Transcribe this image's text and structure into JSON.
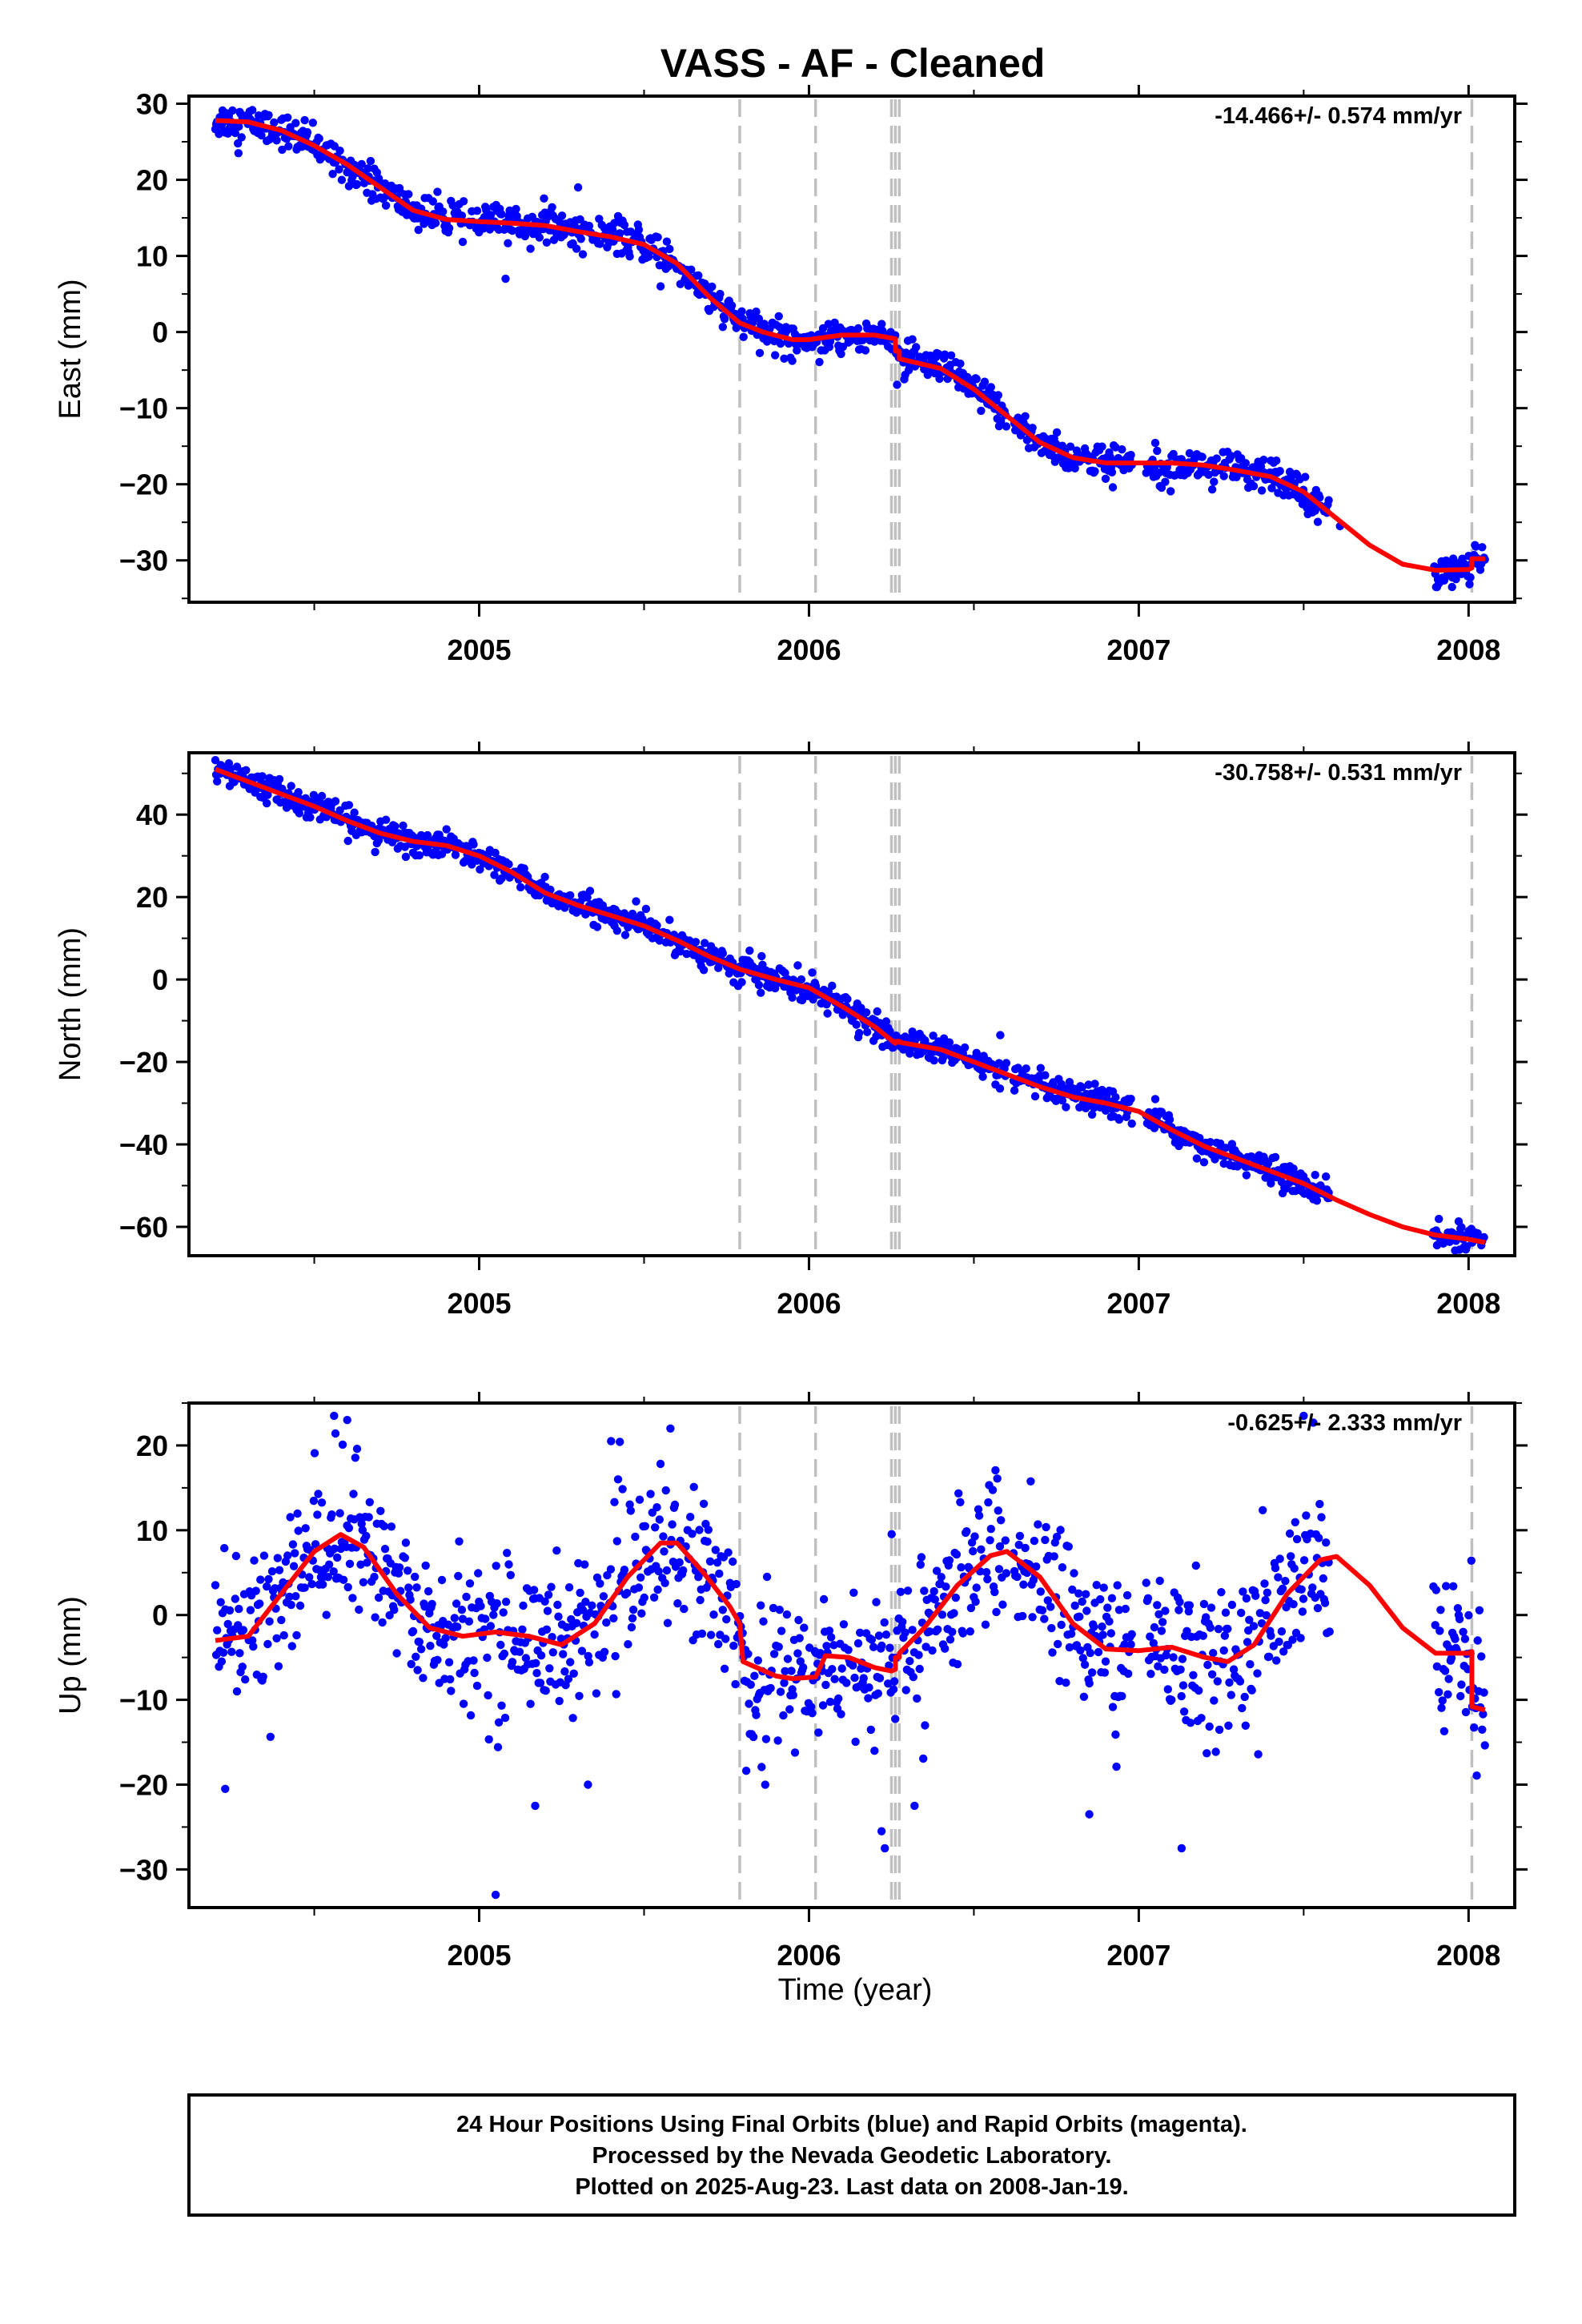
{
  "chart_data": {
    "type": "scatter",
    "title": "VASS  - AF - Cleaned",
    "xlabel": "Time (year)",
    "xlim": [
      2004.12,
      2008.14
    ],
    "x_ticks": [
      2005,
      2006,
      2007,
      2008
    ],
    "x_tick_labels": [
      "2005",
      "2006",
      "2007",
      "2008"
    ],
    "minor_x_ticks": [
      2004.5,
      2005.5,
      2006.5,
      2007.5
    ],
    "grid": false,
    "event_lines": [
      2005.79,
      2006.02,
      2006.25,
      2006.262,
      2006.274,
      2008.01
    ],
    "panels": [
      {
        "id": "east",
        "ylabel": "East (mm)",
        "ylim": [
          -35.5,
          31
        ],
        "y_ticks": [
          30,
          20,
          10,
          0,
          -10,
          -20,
          -30
        ],
        "y_tick_labels": [
          "30",
          "20",
          "10",
          "0",
          "−10",
          "−20",
          "−30"
        ],
        "rate_text": "-14.466+/- 0.574 mm/yr",
        "gaps": [
          [
            2006.6,
            2006.62
          ],
          [
            2006.98,
            2007.02
          ],
          [
            2007.58,
            2007.89
          ]
        ],
        "fit": [
          [
            2004.2,
            27.8
          ],
          [
            2004.3,
            27.6
          ],
          [
            2004.4,
            26.5
          ],
          [
            2004.5,
            24.5
          ],
          [
            2004.6,
            22
          ],
          [
            2004.7,
            19
          ],
          [
            2004.8,
            16
          ],
          [
            2004.9,
            14.8
          ],
          [
            2005.0,
            14.5
          ],
          [
            2005.1,
            14.3
          ],
          [
            2005.2,
            14
          ],
          [
            2005.3,
            13.2
          ],
          [
            2005.4,
            12.5
          ],
          [
            2005.5,
            11.5
          ],
          [
            2005.6,
            9
          ],
          [
            2005.7,
            4.5
          ],
          [
            2005.79,
            1.2
          ],
          [
            2005.86,
            0
          ],
          [
            2005.95,
            -1
          ],
          [
            2006.0,
            -1
          ],
          [
            2006.1,
            -0.4
          ],
          [
            2006.2,
            -0.4
          ],
          [
            2006.25,
            -0.8
          ],
          [
            2006.262,
            -0.9
          ],
          [
            2006.262,
            -2.5
          ],
          [
            2006.274,
            -2.5
          ],
          [
            2006.274,
            -3.5
          ],
          [
            2006.4,
            -4.8
          ],
          [
            2006.5,
            -7.5
          ],
          [
            2006.6,
            -11
          ],
          [
            2006.7,
            -14.5
          ],
          [
            2006.8,
            -16.5
          ],
          [
            2006.9,
            -17.2
          ],
          [
            2007.0,
            -17.2
          ],
          [
            2007.1,
            -17.2
          ],
          [
            2007.2,
            -17.5
          ],
          [
            2007.3,
            -18.2
          ],
          [
            2007.4,
            -19
          ],
          [
            2007.5,
            -21
          ],
          [
            2007.6,
            -24.5
          ],
          [
            2007.7,
            -28
          ],
          [
            2007.8,
            -30.5
          ],
          [
            2007.9,
            -31.3
          ],
          [
            2008.0,
            -31.2
          ],
          [
            2008.01,
            -31
          ],
          [
            2008.01,
            -29.8
          ],
          [
            2008.05,
            -29.8
          ]
        ],
        "spread": 1.1,
        "outliers": [
          [
            2004.27,
            23.5
          ],
          [
            2005.08,
            7
          ],
          [
            2007.61,
            -25.5
          ],
          [
            2007.95,
            -33.5
          ],
          [
            2005.3,
            19
          ],
          [
            2005.55,
            6
          ]
        ]
      },
      {
        "id": "north",
        "ylabel": "North (mm)",
        "ylim": [
          -67,
          55
        ],
        "y_ticks": [
          40,
          20,
          0,
          -20,
          -40,
          -60
        ],
        "y_tick_labels": [
          "40",
          "20",
          "0",
          "−20",
          "−40",
          "−60"
        ],
        "rate_text": "-30.758+/- 0.531 mm/yr",
        "gaps": [
          [
            2006.6,
            2006.62
          ],
          [
            2006.98,
            2007.02
          ],
          [
            2007.58,
            2007.89
          ]
        ],
        "fit": [
          [
            2004.2,
            51
          ],
          [
            2004.3,
            48
          ],
          [
            2004.4,
            45
          ],
          [
            2004.5,
            42
          ],
          [
            2004.6,
            38.5
          ],
          [
            2004.7,
            35.5
          ],
          [
            2004.8,
            33.5
          ],
          [
            2004.9,
            32.5
          ],
          [
            2005.0,
            30
          ],
          [
            2005.1,
            26
          ],
          [
            2005.2,
            21
          ],
          [
            2005.3,
            18
          ],
          [
            2005.4,
            15.5
          ],
          [
            2005.5,
            13
          ],
          [
            2005.6,
            9.5
          ],
          [
            2005.7,
            5.5
          ],
          [
            2005.79,
            2.5
          ],
          [
            2005.9,
            0
          ],
          [
            2006.0,
            -2
          ],
          [
            2006.1,
            -6.5
          ],
          [
            2006.2,
            -11.5
          ],
          [
            2006.262,
            -15.5
          ],
          [
            2006.262,
            -15
          ],
          [
            2006.274,
            -15
          ],
          [
            2006.274,
            -15.2
          ],
          [
            2006.4,
            -17
          ],
          [
            2006.5,
            -20
          ],
          [
            2006.6,
            -23
          ],
          [
            2006.7,
            -26
          ],
          [
            2006.8,
            -28.5
          ],
          [
            2006.9,
            -30
          ],
          [
            2007.0,
            -32
          ],
          [
            2007.1,
            -36.5
          ],
          [
            2007.2,
            -40.5
          ],
          [
            2007.3,
            -43.5
          ],
          [
            2007.4,
            -46.5
          ],
          [
            2007.5,
            -49.5
          ],
          [
            2007.6,
            -53.5
          ],
          [
            2007.7,
            -57
          ],
          [
            2007.8,
            -60
          ],
          [
            2007.9,
            -62
          ],
          [
            2008.0,
            -63
          ],
          [
            2008.05,
            -63.8
          ]
        ],
        "spread": 1.6,
        "outliers": [
          [
            2006.58,
            -13.5
          ],
          [
            2007.05,
            -29
          ],
          [
            2005.82,
            7
          ]
        ]
      },
      {
        "id": "up",
        "ylabel": "Up (mm)",
        "ylim": [
          -34.5,
          25
        ],
        "y_ticks": [
          20,
          10,
          0,
          -10,
          -20,
          -30
        ],
        "y_tick_labels": [
          "20",
          "10",
          "0",
          "−10",
          "−20",
          "−30"
        ],
        "rate_text": "-0.625+/- 2.333 mm/yr",
        "gaps": [
          [
            2006.6,
            2006.62
          ],
          [
            2006.98,
            2007.02
          ],
          [
            2007.58,
            2007.89
          ]
        ],
        "fit": [
          [
            2004.2,
            -3
          ],
          [
            2004.3,
            -2.5
          ],
          [
            2004.4,
            2.5
          ],
          [
            2004.5,
            7.5
          ],
          [
            2004.58,
            9.5
          ],
          [
            2004.65,
            8
          ],
          [
            2004.75,
            2.5
          ],
          [
            2004.85,
            -1.5
          ],
          [
            2004.95,
            -2.5
          ],
          [
            2005.05,
            -2
          ],
          [
            2005.15,
            -2.5
          ],
          [
            2005.25,
            -3.5
          ],
          [
            2005.35,
            -1
          ],
          [
            2005.45,
            4.5
          ],
          [
            2005.55,
            8.5
          ],
          [
            2005.6,
            8.5
          ],
          [
            2005.68,
            5
          ],
          [
            2005.76,
            1
          ],
          [
            2005.79,
            -1
          ],
          [
            2005.8,
            -5.5
          ],
          [
            2005.9,
            -7.2
          ],
          [
            2005.95,
            -7.5
          ],
          [
            2006.02,
            -7.3
          ],
          [
            2006.05,
            -4.8
          ],
          [
            2006.12,
            -5
          ],
          [
            2006.2,
            -6.2
          ],
          [
            2006.25,
            -6.6
          ],
          [
            2006.262,
            -6.4
          ],
          [
            2006.262,
            -5
          ],
          [
            2006.274,
            -5
          ],
          [
            2006.274,
            -4.5
          ],
          [
            2006.35,
            -1.5
          ],
          [
            2006.45,
            3.5
          ],
          [
            2006.55,
            7
          ],
          [
            2006.6,
            7.5
          ],
          [
            2006.7,
            4.5
          ],
          [
            2006.8,
            -1
          ],
          [
            2006.9,
            -4
          ],
          [
            2007.0,
            -4.2
          ],
          [
            2007.1,
            -3.8
          ],
          [
            2007.2,
            -5
          ],
          [
            2007.27,
            -5.5
          ],
          [
            2007.35,
            -3.5
          ],
          [
            2007.45,
            2.5
          ],
          [
            2007.55,
            6.5
          ],
          [
            2007.6,
            6.9
          ],
          [
            2007.7,
            3.5
          ],
          [
            2007.8,
            -1.5
          ],
          [
            2007.9,
            -4.5
          ],
          [
            2008.0,
            -4.5
          ],
          [
            2008.01,
            -4.3
          ],
          [
            2008.01,
            -10.8
          ],
          [
            2008.05,
            -11.2
          ]
        ],
        "spread": 4.5,
        "outliers": [
          [
            2004.23,
            -20.5
          ],
          [
            2005.05,
            -33
          ],
          [
            2004.6,
            23
          ],
          [
            2004.56,
            23.5
          ],
          [
            2005.58,
            22
          ],
          [
            2005.4,
            20.5
          ],
          [
            2006.22,
            -25.5
          ],
          [
            2006.23,
            -27.5
          ],
          [
            2007.13,
            -27.5
          ],
          [
            2006.85,
            -23.5
          ],
          [
            2005.17,
            -22.5
          ],
          [
            2005.33,
            -20
          ],
          [
            2007.5,
            23.5
          ],
          [
            2006.32,
            -22.5
          ]
        ]
      }
    ],
    "series": [
      {
        "name": "",
        "role": "daily positions",
        "color": "#0000ff"
      },
      {
        "name": "",
        "role": "model fit",
        "color": "#ff0000"
      }
    ],
    "colors": {
      "points": "#0000ff",
      "fit": "#ff0000",
      "event_lines": "#c0c0c0"
    }
  },
  "footer": {
    "line1": "24 Hour Positions Using Final Orbits (blue) and Rapid Orbits (magenta).",
    "line2": "Processed by the Nevada Geodetic Laboratory.",
    "line3": "Plotted on 2025-Aug-23. Last data on 2008-Jan-19."
  }
}
